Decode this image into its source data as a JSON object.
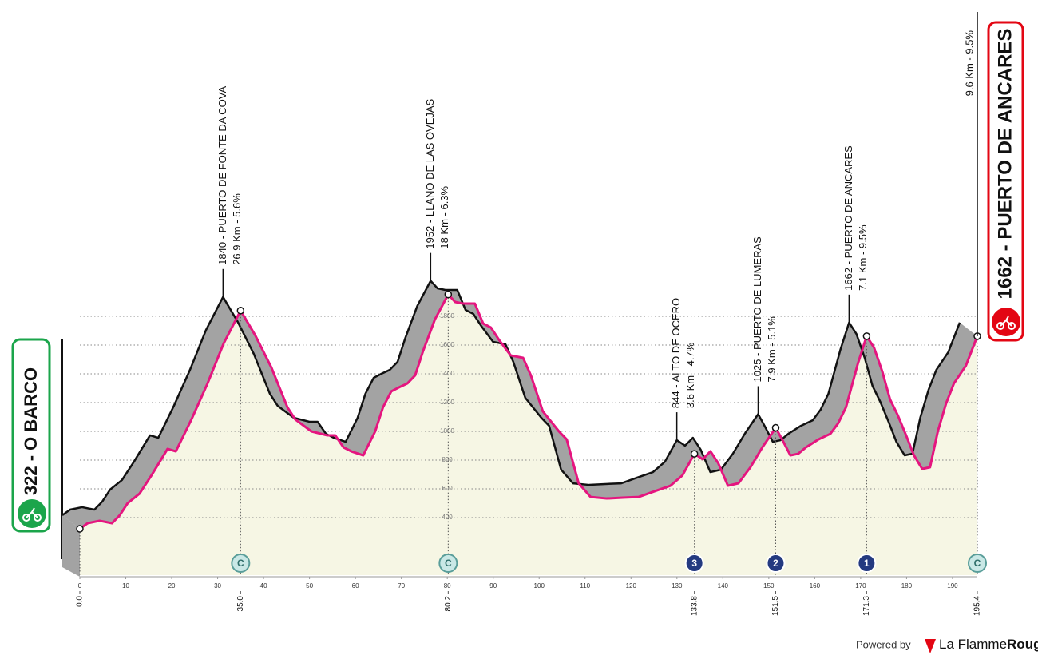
{
  "chart_data": {
    "type": "elevation-profile",
    "x": [
      0,
      1.7,
      4.3,
      7.0,
      8.7,
      10.4,
      13.0,
      15.6,
      19.1,
      20.9,
      24.3,
      27.8,
      31.3,
      35.0,
      38.2,
      41.7,
      45.2,
      46.9,
      50.4,
      53.9,
      55.6,
      57.4,
      59.1,
      61.7,
      64.3,
      66.0,
      67.8,
      69.5,
      71.3,
      73.0,
      74.7,
      77.3,
      80.2,
      81.7,
      83.4,
      86.0,
      87.8,
      89.5,
      91.2,
      93.8,
      96.5,
      98.2,
      100.8,
      104.3,
      106.0,
      108.6,
      111.2,
      114.7,
      118.2,
      121.7,
      125.1,
      128.6,
      131.2,
      133.8,
      135.6,
      137.3,
      139.0,
      141.1,
      143.4,
      146.0,
      148.6,
      151.5,
      152.9,
      154.7,
      156.4,
      158.1,
      160.8,
      163.4,
      165.1,
      166.8,
      169.4,
      171.3,
      172.9,
      174.7,
      176.4,
      178.1,
      179.9,
      181.6,
      183.4,
      185.1,
      186.8,
      188.6,
      190.3,
      192.9,
      195.4
    ],
    "values": [
      322,
      361,
      378,
      361,
      417,
      500,
      567,
      694,
      878,
      861,
      1083,
      1333,
      1611,
      1840,
      1667,
      1444,
      1167,
      1083,
      1000,
      972,
      972,
      889,
      861,
      833,
      1000,
      1167,
      1278,
      1306,
      1333,
      1389,
      1556,
      1778,
      1952,
      1900,
      1889,
      1889,
      1750,
      1722,
      1639,
      1528,
      1511,
      1389,
      1139,
      1000,
      944,
      639,
      544,
      533,
      539,
      544,
      583,
      622,
      694,
      844,
      806,
      861,
      778,
      622,
      639,
      750,
      889,
      1025,
      944,
      833,
      844,
      889,
      944,
      983,
      1056,
      1167,
      1472,
      1662,
      1583,
      1417,
      1222,
      1111,
      972,
      833,
      739,
      750,
      1000,
      1194,
      1333,
      1456,
      1662
    ],
    "xlim": [
      0,
      195.4
    ],
    "ylim": [
      0,
      2000
    ],
    "xticks": [
      0,
      10,
      20,
      30,
      40,
      50,
      60,
      70,
      80,
      90,
      100,
      110,
      120,
      130,
      140,
      150,
      160,
      170,
      180,
      190
    ],
    "yticks": [
      400,
      600,
      800,
      1000,
      1200,
      1400,
      1600,
      1800
    ],
    "color": "#e5157f",
    "start": {
      "label": "322 - O BARCO",
      "color": "#1ba54b"
    },
    "finish": {
      "label": "1662 - PUERTO DE ANCARES",
      "detail": "9.6 Km - 9.5%",
      "color": "#e30613"
    },
    "markers": [
      {
        "value": 0,
        "label": "0.0"
      },
      {
        "value": 35.0,
        "label": "35.0",
        "category": "C",
        "climb": "1840 - PUERTO DE FONTE DA COVA",
        "detail": "26.9 Km - 5.6%"
      },
      {
        "value": 80.2,
        "label": "80.2",
        "category": "C",
        "climb": "1952 - LLANO DE LAS OVEJAS",
        "detail": "18 Km - 6.3%"
      },
      {
        "value": 133.8,
        "label": "133.8",
        "category": "3",
        "climb": "844 - ALTO DE OCERO",
        "detail": "3.6 Km - 4.7%"
      },
      {
        "value": 151.5,
        "label": "151.5",
        "category": "2",
        "climb": "1025 - PUERTO DE LUMERAS",
        "detail": "7.9 Km - 5.1%"
      },
      {
        "value": 171.3,
        "label": "171.3",
        "category": "1",
        "climb": "1662 - PUERTO DE ANCARES",
        "detail": "7.1 Km - 9.5%"
      },
      {
        "value": 195.4,
        "label": "195.4",
        "category": "C"
      }
    ]
  },
  "footer": {
    "powered_by": "Powered by",
    "brand": "La Flamme",
    "brand_bold": "Rouge"
  }
}
